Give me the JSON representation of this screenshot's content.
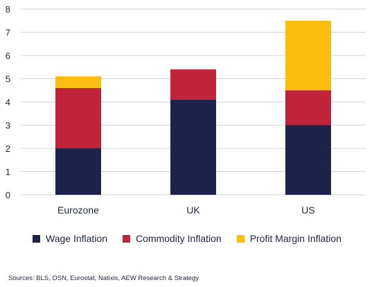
{
  "chart_data": {
    "type": "bar",
    "stacked": true,
    "categories": [
      "Eurozone",
      "UK",
      "US"
    ],
    "series": [
      {
        "name": "Wage Inflation",
        "values": [
          2.0,
          4.1,
          3.0
        ],
        "color": "#1d2349"
      },
      {
        "name": "Commodity Inflation",
        "values": [
          2.6,
          1.3,
          1.5
        ],
        "color": "#c0233a"
      },
      {
        "name": "Profit Margin Inflation",
        "values": [
          0.5,
          0.0,
          3.0
        ],
        "color": "#fbbd10"
      }
    ],
    "ylim": [
      0,
      8
    ],
    "yticks": [
      0,
      1,
      2,
      3,
      4,
      5,
      6,
      7,
      8
    ],
    "grid": true,
    "legend_position": "bottom"
  },
  "source": "Sources: BLS, OSN, Eurostat, Natixis, AEW Research & Strategy"
}
